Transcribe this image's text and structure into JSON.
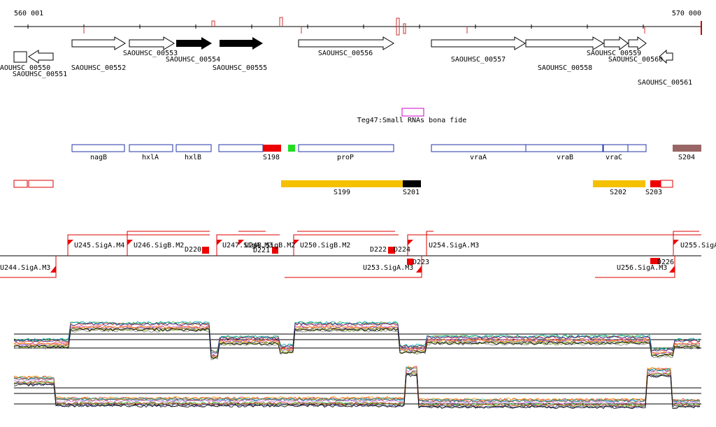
{
  "ruler": {
    "start": "560 001",
    "end": "570 000"
  },
  "genes": [
    "SAOUHSC_00550",
    "SAOUHSC_00551",
    "SAOUHSC_00552",
    "SAOUHSC_00553",
    "SAOUHSC_00554",
    "SAOUHSC_00555",
    "SAOUHSC_00556",
    "SAOUHSC_00557",
    "SAOUHSC_00558",
    "SAOUHSC_00559",
    "SAOUHSC_00560",
    "SAOUHSC_00561"
  ],
  "srna": "Teg47:Small RNAs bona fide",
  "features": [
    "nagB",
    "hxlA",
    "hxlB",
    "S198",
    "proP",
    "vraA",
    "vraB",
    "vraC",
    "S204"
  ],
  "segments": [
    "S199",
    "S201",
    "S202",
    "S203"
  ],
  "promoters": [
    "U244.SigA.M3",
    "U245.SigA.M4",
    "U246.SigB.M2",
    "D220",
    "U247.SigA.M3",
    "U248.SigB.M2",
    "D221",
    "U250.SigB.M2",
    "D222",
    "D224",
    "U254.SigA.M3",
    "D223",
    "U253.SigA.M3",
    "U255.SigA",
    "U256.SigA.M3",
    "D226"
  ]
}
